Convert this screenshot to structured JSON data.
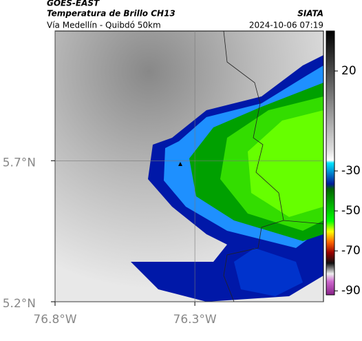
{
  "header": {
    "title": "GOES-EAST",
    "subtitle": "Temperatura de Brillo CH13",
    "source": "SIATA",
    "route": "Vía Medellín - Quibdó 50km",
    "datetime": "2024-10-06 07:19"
  },
  "map": {
    "lonlim": [
      -76.8,
      -75.84
    ],
    "latlim": [
      5.2,
      6.16
    ],
    "xticks": [
      {
        "value": -76.8,
        "label": "76.8°W"
      },
      {
        "value": -76.3,
        "label": "76.3°W"
      }
    ],
    "yticks": [
      {
        "value": 5.7,
        "label": "5.7°N"
      },
      {
        "value": 5.2,
        "label": "5.2°N"
      }
    ],
    "colorbar": {
      "lim": [
        40,
        -92
      ],
      "ticks": [
        20,
        -30,
        -50,
        -70,
        -90
      ]
    }
  }
}
